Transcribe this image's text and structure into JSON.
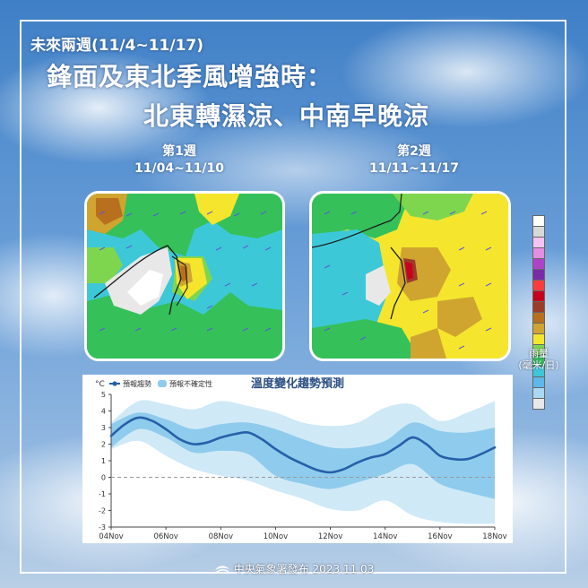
{
  "header": {
    "subtitle": "未來兩週(11/4~11/17)",
    "title_line1": "鋒面及東北季風增強時：",
    "title_line2": "北東轉濕涼、中南早晚涼"
  },
  "maps": [
    {
      "week": "第1週",
      "range": "11/04~11/10"
    },
    {
      "week": "第2週",
      "range": "11/11~11/17"
    }
  ],
  "legend": {
    "label_line1": "雨量",
    "label_line2": "(毫米/日)",
    "colors": [
      "#ffffff",
      "#d8d8d8",
      "#f4c3f2",
      "#e58de0",
      "#b042c9",
      "#7a2aa8",
      "#ff3c3c",
      "#c8001e",
      "#9c3c28",
      "#b8701e",
      "#cfa530",
      "#f5e62d",
      "#7ed64f",
      "#35c05a",
      "#3dc8d8",
      "#5fb8ea",
      "#a9d8f0",
      "#e8e8e8"
    ]
  },
  "colors": {
    "forecast_line": "#2660a8",
    "uncertainty_inner": "#8fcbec",
    "uncertainty_outer": "#cfe9f7"
  },
  "chart_data": {
    "type": "line",
    "title": "溫度變化趨勢預測",
    "unit_label": "°C",
    "legend": [
      {
        "name": "預報趨勢",
        "icon": "line-dot-icon"
      },
      {
        "name": "預報不確定性",
        "icon": "band-icon"
      }
    ],
    "x_tick_labels": [
      "04Nov",
      "06Nov",
      "08Nov",
      "10Nov",
      "12Nov",
      "14Nov",
      "16Nov",
      "18Nov"
    ],
    "xlim": [
      0,
      14
    ],
    "ylim": [
      -3,
      5
    ],
    "y_ticks": [
      -3,
      -2,
      -1,
      0,
      1,
      2,
      3,
      4,
      5
    ],
    "reference_line": 0,
    "series": [
      {
        "name": "預報趨勢",
        "x": [
          0,
          0.5,
          1,
          1.5,
          2,
          2.5,
          3,
          3.5,
          4,
          4.5,
          5,
          5.5,
          6,
          6.5,
          7,
          7.5,
          8,
          8.5,
          9,
          9.5,
          10,
          10.5,
          11,
          11.5,
          12,
          12.5,
          13,
          13.5,
          14
        ],
        "values": [
          2.5,
          3.2,
          3.6,
          3.4,
          2.9,
          2.3,
          2.0,
          2.1,
          2.4,
          2.6,
          2.7,
          2.3,
          1.7,
          1.2,
          0.8,
          0.45,
          0.3,
          0.5,
          0.9,
          1.2,
          1.4,
          1.9,
          2.4,
          2.0,
          1.3,
          1.1,
          1.1,
          1.4,
          1.8
        ]
      },
      {
        "name": "預報不確定性",
        "band": "inner",
        "x": [
          0,
          1,
          2,
          3,
          4,
          5,
          6,
          7,
          8,
          9,
          10,
          11,
          12,
          13,
          14
        ],
        "upper": [
          3.2,
          3.9,
          3.5,
          2.9,
          3.2,
          3.3,
          2.9,
          2.3,
          1.8,
          1.8,
          2.2,
          3.3,
          2.8,
          2.7,
          3.0
        ],
        "lower": [
          1.8,
          2.9,
          2.4,
          1.5,
          1.6,
          1.4,
          0.1,
          -0.4,
          -0.7,
          -0.3,
          0.2,
          0.8,
          -0.4,
          -0.9,
          -1.3
        ]
      },
      {
        "name": "預報不確定性",
        "band": "outer",
        "x": [
          0,
          1,
          2,
          3,
          4,
          5,
          6,
          7,
          8,
          9,
          10,
          11,
          12,
          13,
          14
        ],
        "upper": [
          3.3,
          4.6,
          4.4,
          4.1,
          4.6,
          4.3,
          3.9,
          3.3,
          3.1,
          3.3,
          4.2,
          4.4,
          3.4,
          3.9,
          4.6
        ],
        "lower": [
          1.7,
          2.2,
          1.3,
          0.5,
          0.1,
          -0.2,
          -0.8,
          -1.3,
          -1.9,
          -2.0,
          -1.4,
          -2.3,
          -2.7,
          -2.8,
          -2.8
        ]
      }
    ]
  },
  "footer": {
    "text": "中央氣象署發布 2023.11.03"
  }
}
